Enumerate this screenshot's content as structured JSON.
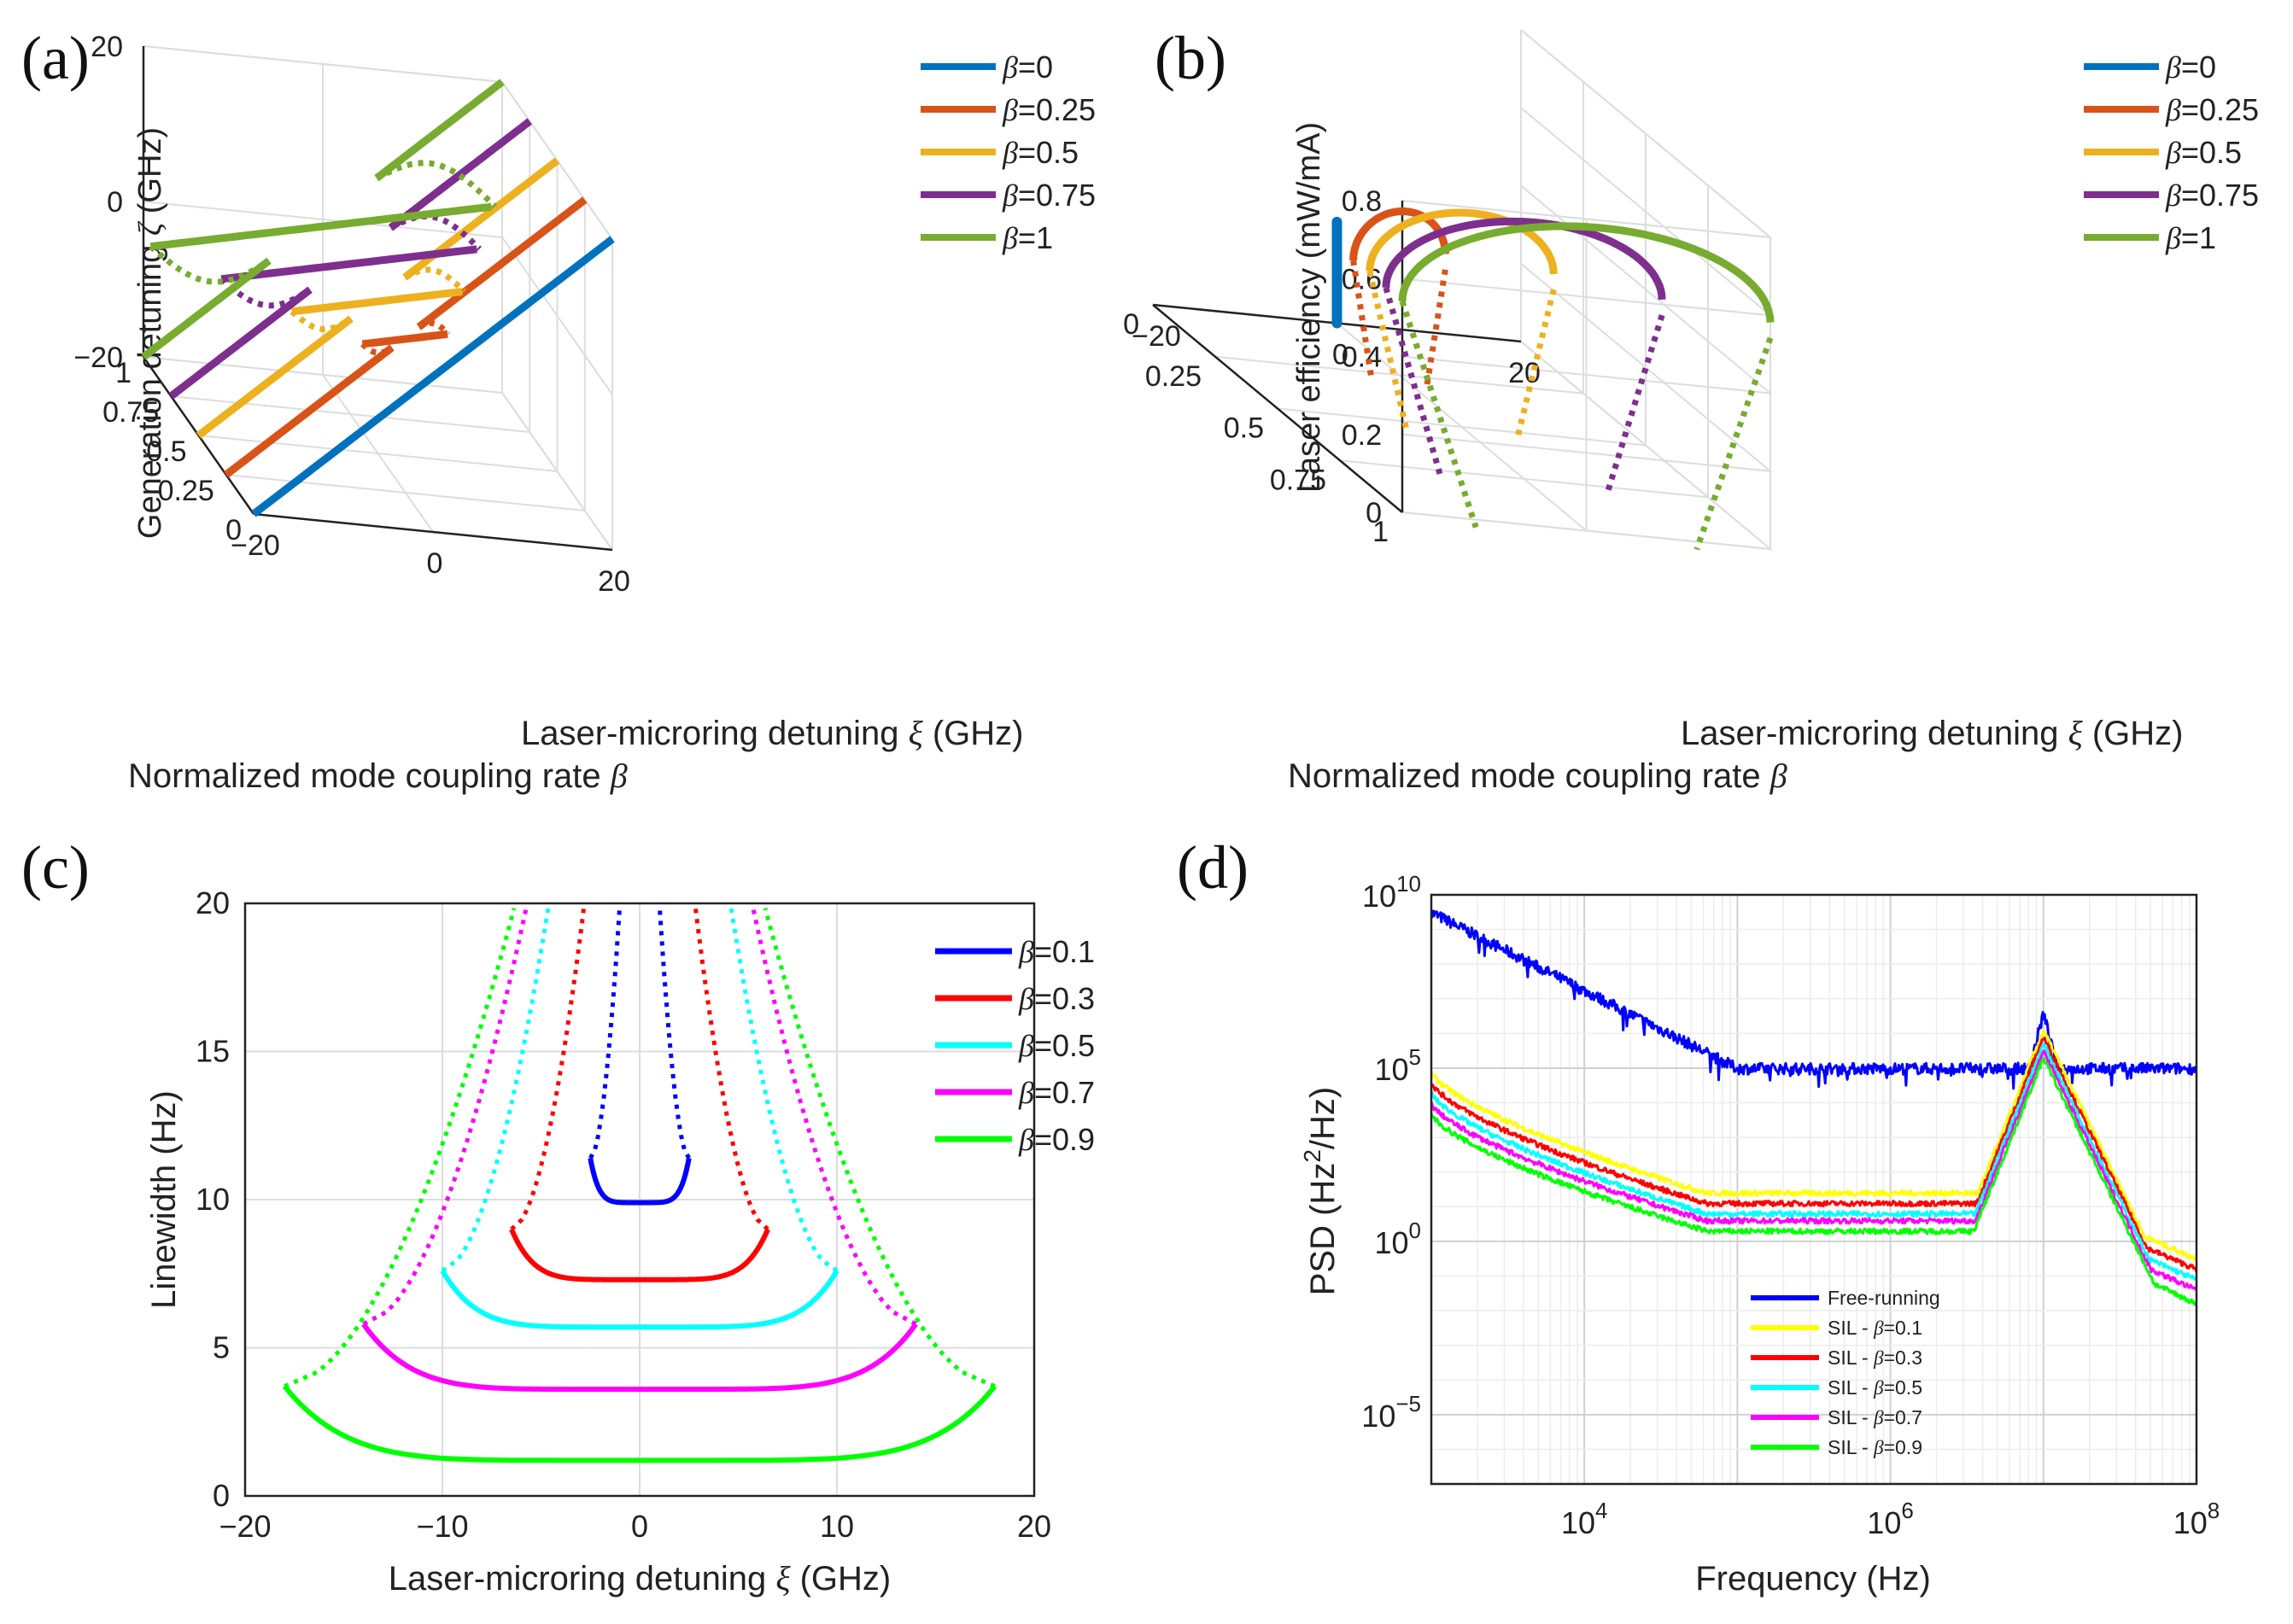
{
  "colors": {
    "a_b0": "#0072BD",
    "a_b025": "#D95319",
    "a_b05": "#EDB120",
    "a_b075": "#7E2F8E",
    "a_b1": "#77AC30",
    "c_b01": "#0000FF",
    "c_b03": "#FF0000",
    "c_b05": "#00FFFF",
    "c_b07": "#FF00FF",
    "c_b09": "#00FF00",
    "d_free": "#0000FF",
    "d_b01": "#FFFF00",
    "d_b03": "#FF0000",
    "d_b05": "#00FFFF",
    "d_b07": "#FF00FF",
    "d_b09": "#00FF00"
  },
  "chart_data": [
    {
      "id": "a",
      "panel_label": "(a)",
      "type": "line",
      "projection": "3d",
      "zlabel": {
        "text": "Generation detuning ",
        "sym": "ζ",
        "unit": " (GHz)"
      },
      "xlabel": {
        "text": "Laser-microring detuning ",
        "sym": "ξ",
        "unit": " (GHz)"
      },
      "ylabel": {
        "text": "Normalized mode coupling rate ",
        "sym": "β"
      },
      "x_range": [
        -20,
        20
      ],
      "y_range": [
        0,
        1
      ],
      "z_range": [
        -20,
        20
      ],
      "x_ticks": [
        "−20",
        "0",
        "20"
      ],
      "y_ticks": [
        "0",
        "0.25",
        "0.5",
        "0.75",
        "1"
      ],
      "z_ticks": [
        "−20",
        "0",
        "20"
      ],
      "legend": [
        {
          "label": "=0",
          "beta": 0,
          "color": "#0072BD"
        },
        {
          "label": "=0.25",
          "beta": 0.25,
          "color": "#D95319"
        },
        {
          "label": "=0.5",
          "beta": 0.5,
          "color": "#EDB120"
        },
        {
          "label": "=0.75",
          "beta": 0.75,
          "color": "#7E2F8E"
        },
        {
          "label": "=1",
          "beta": 1,
          "color": "#77AC30"
        }
      ],
      "legend_prefix": "β",
      "series": [
        {
          "beta": 0,
          "color": "#0072BD",
          "solid_lower": [
            -20,
            20
          ],
          "solid_upper": [],
          "dotted": []
        },
        {
          "beta": 0.25,
          "color": "#D95319",
          "solid_lower": [
            -20,
            -1.5
          ],
          "solid_upper": [
            1.5,
            20
          ],
          "branch_lo": [
            -1.5,
            0
          ],
          "branch_hi": [
            0,
            1.5
          ]
        },
        {
          "beta": 0.5,
          "color": "#EDB120",
          "solid_lower": [
            -20,
            -3
          ],
          "solid_upper": [
            3,
            20
          ],
          "branch_lo": [
            -3,
            0
          ],
          "branch_hi": [
            0,
            3
          ]
        },
        {
          "beta": 0.75,
          "color": "#7E2F8E",
          "solid_lower": [
            -20,
            -4.5
          ],
          "solid_upper": [
            4.5,
            20
          ],
          "branch_lo": [
            -4.5,
            0
          ],
          "branch_hi": [
            0,
            4.5
          ]
        },
        {
          "beta": 1,
          "color": "#77AC30",
          "solid_lower": [
            -20,
            -6
          ],
          "solid_upper": [
            6,
            20
          ],
          "branch_lo": [
            -6,
            0
          ],
          "branch_hi": [
            0,
            6
          ]
        }
      ]
    },
    {
      "id": "b",
      "panel_label": "(b)",
      "type": "line",
      "projection": "3d",
      "zlabel": {
        "text": "Laser efficiency (mW/mA)",
        "sym": "",
        "unit": ""
      },
      "xlabel": {
        "text": "Laser-microring detuning ",
        "sym": "ξ",
        "unit": " (GHz)"
      },
      "ylabel": {
        "text": "Normalized mode coupling rate ",
        "sym": "β"
      },
      "x_range": [
        -20,
        20
      ],
      "y_range": [
        0,
        1
      ],
      "z_range": [
        0,
        0.8
      ],
      "x_ticks": [
        "−20",
        "0",
        "20"
      ],
      "y_ticks": [
        "0",
        "0.25",
        "0.5",
        "0.75",
        "1"
      ],
      "z_ticks": [
        "0",
        "0.2",
        "0.4",
        "0.6",
        "0.8"
      ],
      "legend": [
        {
          "label": "=0",
          "beta": 0,
          "color": "#0072BD"
        },
        {
          "label": "=0.25",
          "beta": 0.25,
          "color": "#D95319"
        },
        {
          "label": "=0.5",
          "beta": 0.5,
          "color": "#EDB120"
        },
        {
          "label": "=0.75",
          "beta": 0.75,
          "color": "#7E2F8E"
        },
        {
          "label": "=1",
          "beta": 1,
          "color": "#77AC30"
        }
      ],
      "legend_prefix": "β",
      "series": [
        {
          "beta": 0,
          "color": "#0072BD",
          "xi_edge": 0,
          "peak": 0.26
        },
        {
          "beta": 0.25,
          "color": "#D95319",
          "xi_edge": 5,
          "peak": 0.42
        },
        {
          "beta": 0.5,
          "color": "#EDB120",
          "xi_edge": 10,
          "peak": 0.55
        },
        {
          "beta": 0.75,
          "color": "#7E2F8E",
          "xi_edge": 15,
          "peak": 0.66
        },
        {
          "beta": 1,
          "color": "#77AC30",
          "xi_edge": 20,
          "peak": 0.78
        }
      ]
    },
    {
      "id": "c",
      "panel_label": "(c)",
      "type": "line",
      "xlabel": {
        "text": "Laser-microring detuning ",
        "sym": "ξ",
        "unit": " (GHz)"
      },
      "ylabel": {
        "text": "Linewidth (Hz)",
        "sym": "",
        "unit": ""
      },
      "xlim": [
        -20,
        20
      ],
      "ylim": [
        0,
        20
      ],
      "x_ticks": [
        -20,
        -10,
        0,
        10,
        20
      ],
      "x_tick_labels": [
        "−20",
        "−10",
        "0",
        "10",
        "20"
      ],
      "y_ticks": [
        0,
        5,
        10,
        15,
        20
      ],
      "y_tick_labels": [
        "0",
        "5",
        "10",
        "15",
        "20"
      ],
      "grid": true,
      "legend_prefix": "β",
      "legend": [
        {
          "label": "=0.1",
          "color": "#0000FF"
        },
        {
          "label": "=0.3",
          "color": "#FF0000"
        },
        {
          "label": "=0.5",
          "color": "#00FFFF"
        },
        {
          "label": "=0.7",
          "color": "#FF00FF"
        },
        {
          "label": "=0.9",
          "color": "#00FF00"
        }
      ],
      "series": [
        {
          "beta": 0.1,
          "color": "#0000FF",
          "half_width": 2.5,
          "min": 9.9,
          "edge": 11.4,
          "dot_top_x": 1.0
        },
        {
          "beta": 0.3,
          "color": "#FF0000",
          "half_width": 6.5,
          "min": 7.3,
          "edge": 9.0,
          "dot_top_x": 2.8
        },
        {
          "beta": 0.5,
          "color": "#00FFFF",
          "half_width": 10.0,
          "min": 5.7,
          "edge": 7.6,
          "dot_top_x": 4.6
        },
        {
          "beta": 0.7,
          "color": "#FF00FF",
          "half_width": 14.0,
          "min": 3.6,
          "edge": 5.8,
          "dot_top_x": 5.7
        },
        {
          "beta": 0.9,
          "color": "#00FF00",
          "half_width": 18.0,
          "min": 1.2,
          "edge": 3.7,
          "dot_top_x": 6.3
        }
      ]
    },
    {
      "id": "d",
      "panel_label": "(d)",
      "type": "line",
      "xscale": "log",
      "yscale": "log",
      "xlabel": {
        "text": "Frequency (Hz)",
        "sym": "",
        "unit": ""
      },
      "ylabel": {
        "text": "PSD (Hz",
        "sup": "2",
        "tail": "/Hz)"
      },
      "xlim_exp": [
        3,
        8
      ],
      "ylim_exp": [
        -7,
        10
      ],
      "x_tick_exps": [
        "4",
        "6",
        "8"
      ],
      "y_tick_exps": [
        "10",
        "5",
        "0",
        "−5"
      ],
      "y_tick_values": [
        10,
        5,
        0,
        -5
      ],
      "x_tick_values": [
        4,
        6,
        8
      ],
      "tick_base": "10",
      "grid": true,
      "legend_prefix": "β",
      "legend": [
        {
          "label": "Free-running",
          "color": "#0000FF",
          "greek": false
        },
        {
          "label": "SIL - ",
          "label2": "=0.1",
          "color": "#FFFF00",
          "greek": true
        },
        {
          "label": "SIL - ",
          "label2": "=0.3",
          "color": "#FF0000",
          "greek": true
        },
        {
          "label": "SIL - ",
          "label2": "=0.5",
          "color": "#00FFFF",
          "greek": true
        },
        {
          "label": "SIL - ",
          "label2": "=0.7",
          "color": "#FF00FF",
          "greek": true
        },
        {
          "label": "SIL - ",
          "label2": "=0.9",
          "color": "#00FF00",
          "greek": true
        }
      ],
      "series": [
        {
          "name": "Free-running",
          "color": "#0000FF",
          "start": 9.5,
          "plateau": 5.0,
          "knee": 5.0,
          "peak": 6.6,
          "end": 5.0,
          "noise": 0.22
        },
        {
          "name": "SIL - β=0.1",
          "color": "#FFFF00",
          "start": 4.9,
          "plateau": 1.4,
          "knee": 5.2,
          "peak": 6.1,
          "end": -0.5,
          "noise": 0.15
        },
        {
          "name": "SIL - β=0.3",
          "color": "#FF0000",
          "start": 4.6,
          "plateau": 1.1,
          "knee": 5.2,
          "peak": 5.9,
          "end": -0.8,
          "noise": 0.15
        },
        {
          "name": "SIL - β=0.5",
          "color": "#00FFFF",
          "start": 4.3,
          "plateau": 0.8,
          "knee": 5.2,
          "peak": 5.7,
          "end": -1.1,
          "noise": 0.15
        },
        {
          "name": "SIL - β=0.7",
          "color": "#FF00FF",
          "start": 4.0,
          "plateau": 0.6,
          "knee": 5.2,
          "peak": 5.5,
          "end": -1.4,
          "noise": 0.15
        },
        {
          "name": "SIL - β=0.9",
          "color": "#00FF00",
          "start": 3.7,
          "plateau": 0.3,
          "knee": 5.2,
          "peak": 5.3,
          "end": -1.8,
          "noise": 0.15
        }
      ]
    }
  ]
}
